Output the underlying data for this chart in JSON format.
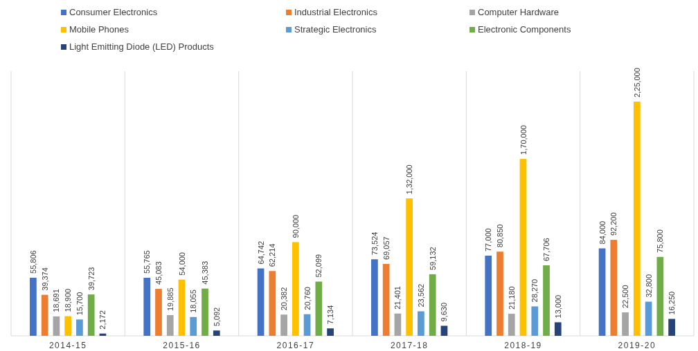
{
  "chart_data": {
    "type": "bar",
    "categories": [
      "2014-15",
      "2015-16",
      "2016-17",
      "2017-18",
      "2018-19",
      "2019-20"
    ],
    "series": [
      {
        "name": "Consumer Electronics",
        "color": "#4472c4",
        "values": [
          55806,
          55765,
          64742,
          73524,
          77000,
          84000
        ],
        "value_labels": [
          "55,806",
          "55,765",
          "64,742",
          "73,524",
          "77,000",
          "84,000"
        ]
      },
      {
        "name": "Industrial Electronics",
        "color": "#ed7d31",
        "values": [
          39374,
          45083,
          62214,
          69057,
          80850,
          92200
        ],
        "value_labels": [
          "39,374",
          "45,083",
          "62,214",
          "69,057",
          "80,850",
          "92,200"
        ]
      },
      {
        "name": "Computer Hardware",
        "color": "#a5a5a5",
        "values": [
          18691,
          19885,
          20382,
          21401,
          21180,
          22500
        ],
        "value_labels": [
          "18,691",
          "19,885",
          "20,382",
          "21,401",
          "21,180",
          "22,500"
        ]
      },
      {
        "name": "Mobile Phones",
        "color": "#ffc000",
        "values": [
          18900,
          54000,
          90000,
          132000,
          170000,
          225000
        ],
        "value_labels": [
          "18,900",
          "54,000",
          "90,000",
          "1,32,000",
          "1,70,000",
          "2,25,000"
        ]
      },
      {
        "name": "Strategic Electronics",
        "color": "#5b9bd5",
        "values": [
          15700,
          18055,
          20760,
          23562,
          28270,
          32800
        ],
        "value_labels": [
          "15,700",
          "18,055",
          "20,760",
          "23,562",
          "28,270",
          "32,800"
        ]
      },
      {
        "name": "Electronic Components",
        "color": "#70ad47",
        "values": [
          39723,
          45383,
          52099,
          59132,
          67706,
          75800
        ],
        "value_labels": [
          "39,723",
          "45,383",
          "52,099",
          "59,132",
          "67,706",
          "75,800"
        ]
      },
      {
        "name": "Light Emitting Diode (LED) Products",
        "color": "#264478",
        "values": [
          2172,
          5092,
          7134,
          9630,
          13000,
          16250
        ],
        "value_labels": [
          "2,172",
          "5,092",
          "7,134",
          "9,630",
          "13,000",
          "16,250"
        ]
      }
    ],
    "grid": "x",
    "legend": "top"
  }
}
